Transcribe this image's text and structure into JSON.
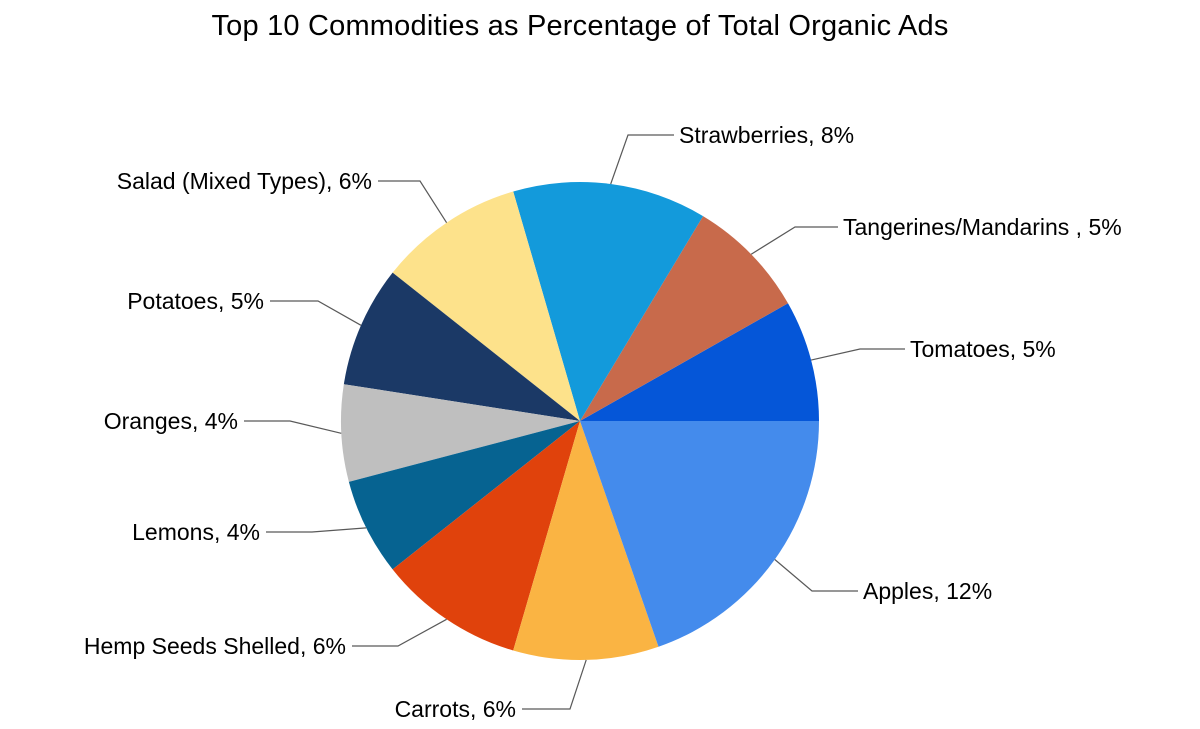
{
  "chart_data": {
    "type": "pie",
    "title": "Top 10 Commodities as Percentage of Total Organic Ads",
    "value_unit": "%",
    "slices": [
      {
        "label": "Tomatoes",
        "display": "5%",
        "value": 5,
        "color": "#0556D8"
      },
      {
        "label": "Tangerines/Mandarins ",
        "display": "5%",
        "value": 5,
        "color": "#C86A4B"
      },
      {
        "label": "Strawberries",
        "display": "8%",
        "value": 8,
        "color": "#139ADB"
      },
      {
        "label": "Salad (Mixed Types)",
        "display": "6%",
        "value": 6,
        "color": "#FDE28B"
      },
      {
        "label": "Potatoes",
        "display": "5%",
        "value": 5,
        "color": "#1B3966"
      },
      {
        "label": "Oranges",
        "display": "4%",
        "value": 4,
        "color": "#BFBFBF"
      },
      {
        "label": "Lemons",
        "display": "4%",
        "value": 4,
        "color": "#066391"
      },
      {
        "label": "Hemp Seeds Shelled",
        "display": "6%",
        "value": 6,
        "color": "#E0420C"
      },
      {
        "label": "Carrots",
        "display": "6%",
        "value": 6,
        "color": "#FAB443"
      },
      {
        "label": "Apples",
        "display": "12%",
        "value": 12,
        "color": "#448BEC"
      }
    ],
    "start": "3 o'clock, counter-clockwise",
    "legend": "none (slice labels with leader lines)"
  }
}
